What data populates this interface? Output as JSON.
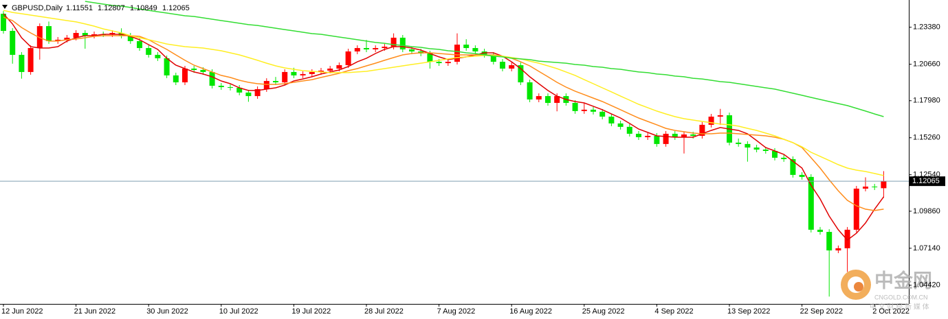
{
  "chart_data": {
    "type": "candlestick",
    "symbol": "GBPUSD,Daily",
    "categories": [
      "12 Jun 2022",
      null,
      null,
      null,
      null,
      null,
      null,
      null,
      "21 Jun 2022",
      null,
      null,
      null,
      null,
      null,
      null,
      null,
      "30 Jun 2022",
      null,
      null,
      null,
      null,
      null,
      null,
      null,
      "10 Jul 2022",
      null,
      null,
      null,
      null,
      null,
      null,
      null,
      "19 Jul 2022",
      null,
      null,
      null,
      null,
      null,
      null,
      null,
      "28 Jul 2022",
      null,
      null,
      null,
      null,
      null,
      null,
      null,
      "7 Aug 2022",
      null,
      null,
      null,
      null,
      null,
      null,
      null,
      "16 Aug 2022",
      null,
      null,
      null,
      null,
      null,
      null,
      null,
      "25 Aug 2022",
      null,
      null,
      null,
      null,
      null,
      null,
      null,
      "4 Sep 2022",
      null,
      null,
      null,
      null,
      null,
      null,
      null,
      "13 Sep 2022",
      null,
      null,
      null,
      null,
      null,
      null,
      null,
      "22 Sep 2022",
      null,
      null,
      null,
      null,
      null,
      null,
      null,
      "2 Oct 2022",
      null
    ],
    "open": [
      1.2437,
      1.2311,
      1.2135,
      1.2009,
      1.2185,
      1.2346,
      1.2236,
      1.2246,
      1.2261,
      1.2296,
      1.2276,
      1.2286,
      1.2286,
      1.2296,
      1.2276,
      1.2236,
      1.2185,
      1.2135,
      1.211,
      1.1984,
      1.1933,
      1.2034,
      1.2024,
      1.2009,
      1.1908,
      1.1898,
      1.1893,
      1.1858,
      1.1832,
      1.1883,
      1.1943,
      1.1933,
      1.2009,
      1.1984,
      1.1994,
      1.2009,
      1.2019,
      1.2034,
      1.2059,
      1.216,
      1.2185,
      1.2175,
      1.2185,
      1.2195,
      1.2261,
      1.2175,
      1.216,
      1.2145,
      1.2084,
      1.2074,
      1.2084,
      1.221,
      1.2185,
      1.216,
      1.2135,
      1.2084,
      1.2034,
      1.2059,
      1.1933,
      1.1807,
      1.1832,
      1.1782,
      1.1832,
      1.1782,
      1.1722,
      1.1732,
      1.1717,
      1.1681,
      1.1631,
      1.1606,
      1.1555,
      1.153,
      1.154,
      1.148,
      1.1555,
      1.153,
      1.155,
      1.154,
      1.1621,
      1.1681,
      1.1691,
      1.149,
      1.148,
      1.1454,
      1.1439,
      1.1429,
      1.1379,
      1.1369,
      1.1253,
      1.1238,
      1.085,
      1.0834,
      1.0698,
      1.0714,
      1.085,
      1.1152,
      1.1167,
      1.11551
    ],
    "high": [
      1.2457,
      1.2331,
      1.2155,
      1.2205,
      1.2366,
      1.238,
      1.2266,
      1.2281,
      1.2316,
      1.2316,
      1.2306,
      1.2306,
      1.2316,
      1.233,
      1.2296,
      1.2256,
      1.2205,
      1.2155,
      1.213,
      1.2004,
      1.2054,
      1.2054,
      1.2044,
      1.2029,
      1.1928,
      1.1918,
      1.1913,
      1.1878,
      1.1903,
      1.1963,
      1.1973,
      1.2029,
      1.204,
      1.2014,
      1.2029,
      1.2039,
      1.2054,
      1.2079,
      1.218,
      1.2205,
      1.2245,
      1.2205,
      1.2215,
      1.2293,
      1.2281,
      1.2195,
      1.218,
      1.2165,
      1.2104,
      1.2104,
      1.2293,
      1.225,
      1.2205,
      1.218,
      1.2155,
      1.2104,
      1.2079,
      1.2079,
      1.1953,
      1.1852,
      1.1852,
      1.1852,
      1.1852,
      1.1802,
      1.178,
      1.1752,
      1.1737,
      1.1701,
      1.1651,
      1.1626,
      1.1575,
      1.156,
      1.156,
      1.1575,
      1.1575,
      1.157,
      1.157,
      1.1641,
      1.1701,
      1.1738,
      1.1711,
      1.152,
      1.15,
      1.1474,
      1.1459,
      1.1449,
      1.1399,
      1.1389,
      1.1273,
      1.1258,
      1.087,
      1.0854,
      1.0734,
      1.087,
      1.1172,
      1.1235,
      1.1187,
      1.12807
    ],
    "low": [
      1.2291,
      1.207,
      1.196,
      1.1989,
      1.21,
      1.2216,
      1.2216,
      1.2226,
      1.2241,
      1.218,
      1.2256,
      1.2266,
      1.2266,
      1.2256,
      1.2216,
      1.2165,
      1.2115,
      1.209,
      1.1964,
      1.1913,
      1.1913,
      1.2004,
      1.1989,
      1.1888,
      1.1878,
      1.1873,
      1.1838,
      1.179,
      1.1812,
      1.1863,
      1.1913,
      1.1913,
      1.1964,
      1.1964,
      1.1974,
      1.1989,
      1.1999,
      1.2014,
      1.2039,
      1.214,
      1.2155,
      1.2155,
      1.2165,
      1.2175,
      1.2155,
      1.214,
      1.2125,
      1.2034,
      1.2054,
      1.2054,
      1.2064,
      1.2165,
      1.214,
      1.2115,
      1.2064,
      1.2014,
      1.2014,
      1.1913,
      1.1787,
      1.1787,
      1.1762,
      1.172,
      1.1762,
      1.1702,
      1.1702,
      1.1697,
      1.1661,
      1.1611,
      1.1586,
      1.1535,
      1.151,
      1.151,
      1.146,
      1.146,
      1.151,
      1.141,
      1.152,
      1.152,
      1.1601,
      1.162,
      1.147,
      1.146,
      1.135,
      1.1419,
      1.1409,
      1.1359,
      1.1349,
      1.1233,
      1.1218,
      1.083,
      1.0814,
      1.0359,
      1.0678,
      1.054,
      1.083,
      1.1132,
      1.1142,
      1.10849
    ],
    "close": [
      1.2311,
      1.2135,
      1.2009,
      1.2185,
      1.2346,
      1.2236,
      1.2246,
      1.2261,
      1.2296,
      1.2276,
      1.2286,
      1.2286,
      1.2296,
      1.2276,
      1.2236,
      1.2185,
      1.2135,
      1.211,
      1.1984,
      1.1933,
      1.2034,
      1.2024,
      1.2009,
      1.1908,
      1.1898,
      1.1893,
      1.1858,
      1.1832,
      1.1883,
      1.1943,
      1.1933,
      1.2009,
      1.1984,
      1.1994,
      1.2009,
      1.2019,
      1.2034,
      1.2059,
      1.216,
      1.2185,
      1.2175,
      1.2185,
      1.2195,
      1.2261,
      1.2175,
      1.216,
      1.2145,
      1.2084,
      1.2074,
      1.2084,
      1.221,
      1.2185,
      1.216,
      1.2135,
      1.2084,
      1.2034,
      1.2059,
      1.1933,
      1.1807,
      1.1832,
      1.1782,
      1.1832,
      1.1782,
      1.1722,
      1.1732,
      1.1717,
      1.1681,
      1.1631,
      1.1606,
      1.1555,
      1.153,
      1.154,
      1.148,
      1.1555,
      1.153,
      1.155,
      1.154,
      1.1621,
      1.1681,
      1.1691,
      1.149,
      1.148,
      1.1454,
      1.1439,
      1.1429,
      1.1379,
      1.1369,
      1.1253,
      1.1238,
      1.085,
      1.0834,
      1.0698,
      1.0714,
      1.085,
      1.1152,
      1.1167,
      1.1162,
      1.12065
    ],
    "up_color": "#ff0000",
    "down_color": "#00e600",
    "series": [
      {
        "color": "#e00000",
        "values": [
          1.2437,
          1.2362,
          1.2261,
          1.2195,
          1.2185,
          1.2185,
          1.2195,
          1.2236,
          1.2261,
          1.2276,
          1.2276,
          1.2286,
          1.2286,
          1.2286,
          1.2271,
          1.2246,
          1.221,
          1.2175,
          1.211,
          1.2059,
          1.2034,
          1.2009,
          1.1994,
          1.1974,
          1.1943,
          1.1923,
          1.1893,
          1.1873,
          1.1873,
          1.1883,
          1.1893,
          1.1913,
          1.1943,
          1.1958,
          1.1974,
          1.1994,
          1.2009,
          1.2024,
          1.2049,
          1.2084,
          1.211,
          1.2145,
          1.2175,
          1.2195,
          1.2195,
          1.2185,
          1.217,
          1.2145,
          1.212,
          1.21,
          1.211,
          1.212,
          1.2135,
          1.215,
          1.215,
          1.2125,
          1.2084,
          1.2034,
          1.1974,
          1.1923,
          1.1873,
          1.1832,
          1.1807,
          1.1792,
          1.1782,
          1.1757,
          1.1732,
          1.1701,
          1.1671,
          1.1631,
          1.159,
          1.1565,
          1.154,
          1.1535,
          1.153,
          1.153,
          1.153,
          1.1555,
          1.158,
          1.1601,
          1.159,
          1.158,
          1.1555,
          1.1505,
          1.1454,
          1.1429,
          1.1404,
          1.1354,
          1.1303,
          1.1177,
          1.1076,
          1.095,
          1.085,
          1.0774,
          1.0824,
          1.09,
          1.1001,
          1.1092
        ]
      },
      {
        "color": "#ff8c1a",
        "values": [
          1.2412,
          1.2387,
          1.2336,
          1.2296,
          1.2261,
          1.2236,
          1.2236,
          1.2246,
          1.2251,
          1.2261,
          1.2271,
          1.2276,
          1.2276,
          1.2276,
          1.2276,
          1.2271,
          1.2246,
          1.221,
          1.2175,
          1.2135,
          1.2095,
          1.2059,
          1.2034,
          1.2009,
          1.1984,
          1.1969,
          1.1948,
          1.1933,
          1.1923,
          1.1918,
          1.1918,
          1.1923,
          1.1933,
          1.1943,
          1.1953,
          1.1969,
          1.1984,
          1.1999,
          1.2019,
          1.2034,
          1.2054,
          1.2074,
          1.2095,
          1.2115,
          1.2135,
          1.2145,
          1.215,
          1.215,
          1.2145,
          1.214,
          1.2135,
          1.2135,
          1.2135,
          1.2135,
          1.2135,
          1.2125,
          1.211,
          1.2084,
          1.2054,
          1.2014,
          1.1974,
          1.1933,
          1.1898,
          1.1868,
          1.1843,
          1.1817,
          1.1792,
          1.1762,
          1.1732,
          1.1701,
          1.1671,
          1.1646,
          1.1621,
          1.1595,
          1.158,
          1.157,
          1.156,
          1.1555,
          1.1555,
          1.156,
          1.156,
          1.1555,
          1.155,
          1.1545,
          1.154,
          1.153,
          1.1515,
          1.149,
          1.1454,
          1.1379,
          1.1303,
          1.1217,
          1.1136,
          1.1066,
          1.1026,
          1.1001,
          1.0991,
          1.1001
        ]
      },
      {
        "color": "#ffee22",
        "values": [
          1.2462,
          1.2447,
          1.2437,
          1.2427,
          1.2417,
          1.2407,
          1.2397,
          1.2387,
          1.2377,
          1.2362,
          1.2346,
          1.2326,
          1.2311,
          1.2296,
          1.2276,
          1.2261,
          1.2246,
          1.2231,
          1.2215,
          1.2205,
          1.2195,
          1.219,
          1.2185,
          1.2175,
          1.2165,
          1.215,
          1.2135,
          1.2115,
          1.2095,
          1.2074,
          1.2054,
          1.2039,
          1.2029,
          1.2019,
          1.2014,
          1.2009,
          1.2004,
          1.2004,
          1.2004,
          1.2009,
          1.2014,
          1.2024,
          1.2034,
          1.2044,
          1.2054,
          1.2064,
          1.2074,
          1.2084,
          1.2095,
          1.2105,
          1.2115,
          1.212,
          1.2125,
          1.213,
          1.213,
          1.2125,
          1.2115,
          1.2105,
          1.2089,
          1.2074,
          1.2054,
          1.2034,
          1.2009,
          1.1984,
          1.1953,
          1.1923,
          1.1893,
          1.1863,
          1.1832,
          1.1802,
          1.1772,
          1.1747,
          1.1722,
          1.1701,
          1.1681,
          1.1666,
          1.1656,
          1.1646,
          1.1636,
          1.1626,
          1.1621,
          1.1611,
          1.1595,
          1.158,
          1.156,
          1.154,
          1.1515,
          1.149,
          1.1459,
          1.1419,
          1.1389,
          1.1359,
          1.1328,
          1.1303,
          1.1288,
          1.1278,
          1.1263,
          1.1248
        ]
      },
      {
        "color": "#33dd33",
        "values": [
          null,
          null,
          null,
          null,
          null,
          null,
          null,
          null,
          null,
          1.2528,
          1.2518,
          1.2508,
          1.2498,
          1.2493,
          1.2483,
          1.2472,
          1.2462,
          1.2452,
          1.2442,
          1.2432,
          1.2422,
          1.2417,
          1.2407,
          1.2397,
          1.2387,
          1.2377,
          1.2367,
          1.2357,
          1.2351,
          1.2341,
          1.2331,
          1.2321,
          1.2311,
          1.2301,
          1.2291,
          1.2286,
          1.2276,
          1.2266,
          1.2256,
          1.2246,
          1.2236,
          1.2226,
          1.222,
          1.221,
          1.2205,
          1.2195,
          1.219,
          1.218,
          1.2175,
          1.2165,
          1.216,
          1.215,
          1.2145,
          1.2135,
          1.2125,
          1.212,
          1.211,
          1.2105,
          1.21,
          1.2089,
          1.2084,
          1.2079,
          1.2074,
          1.2064,
          1.2059,
          1.2049,
          1.2044,
          1.2034,
          1.2029,
          1.2019,
          1.2009,
          1.2004,
          1.1994,
          1.1989,
          1.1979,
          1.1974,
          1.1963,
          1.1958,
          1.1948,
          1.1938,
          1.1933,
          1.1923,
          1.1913,
          1.1903,
          1.1893,
          1.1883,
          1.1868,
          1.1853,
          1.1838,
          1.1822,
          1.1807,
          1.1792,
          1.1777,
          1.1762,
          1.1742,
          1.1722,
          1.1701,
          1.1681
        ]
      }
    ],
    "ylim": [
      1.0305,
      1.2538
    ],
    "yticks": [
      {
        "value": 1.2338,
        "label": "1.23380"
      },
      {
        "value": 1.2066,
        "label": "1.20660"
      },
      {
        "value": 1.1798,
        "label": "1.17980"
      },
      {
        "value": 1.1526,
        "label": "1.15260"
      },
      {
        "value": 1.1254,
        "label": "1.12540"
      },
      {
        "value": 1.0986,
        "label": "1.09860"
      },
      {
        "value": 1.0714,
        "label": "1.07140"
      },
      {
        "value": 1.0442,
        "label": "1.04420"
      }
    ]
  },
  "watermark": {
    "name": "中金网",
    "site": "CNGOLD.COM.CN",
    "tagline": "中 文 财 经 新 媒 体"
  }
}
